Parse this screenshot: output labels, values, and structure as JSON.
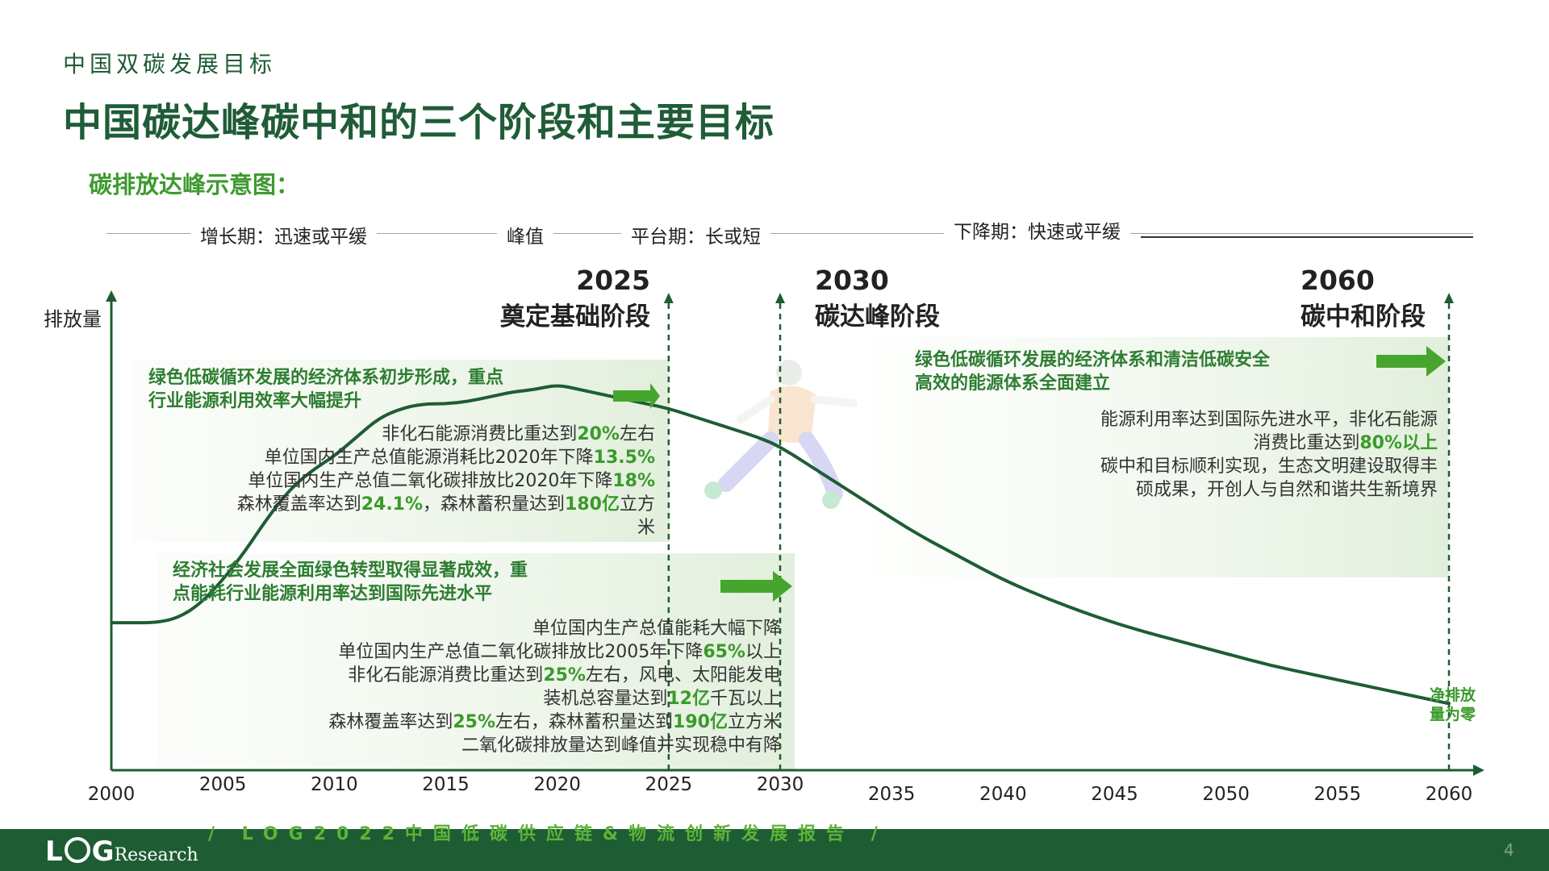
{
  "header": {
    "section": "中国双碳发展目标",
    "title": "中国碳达峰碳中和的三个阶段和主要目标",
    "subtitle": "碳排放达峰示意图："
  },
  "phases": [
    "增长期：迅速或平缓",
    "峰值",
    "平台期：长或短",
    "下降期：快速或平缓"
  ],
  "milestones": [
    {
      "year": "2025",
      "name": "奠定基础阶段"
    },
    {
      "year": "2030",
      "name": "碳达峰阶段"
    },
    {
      "year": "2060",
      "name": "碳中和阶段"
    }
  ],
  "boxes": {
    "b2025": {
      "head": [
        "绿色低碳循环发展的经济体系初步形成，重点",
        "行业能源利用效率大幅提升"
      ],
      "lines": [
        [
          "非化石能源消费比重达到",
          "20%",
          "左右"
        ],
        [
          "单位国内生产总值能源消耗比2020年下降",
          "13.5%",
          ""
        ],
        [
          "单位国内生产总值二氧化碳排放比2020年下降",
          "18%",
          ""
        ],
        [
          "森林覆盖率达到",
          "24.1%",
          "，森林蓄积量达到",
          "180亿",
          "立方"
        ],
        [
          "米"
        ]
      ]
    },
    "b2030": {
      "head": [
        "经济社会发展全面绿色转型取得显著成效，重",
        "点能耗行业能源利用率达到国际先进水平"
      ],
      "lines": [
        [
          "单位国内生产总值能耗大幅下降"
        ],
        [
          "单位国内生产总值二氧化碳排放比2005年下降",
          "65%",
          "以上"
        ],
        [
          "非化石能源消费比重达到",
          "25%",
          "左右，风电、太阳能发电"
        ],
        [
          "装机总容量达到",
          "12亿",
          "千瓦以上"
        ],
        [
          "森林覆盖率达到",
          "25%",
          "左右，森林蓄积量达到",
          "190亿",
          "立方米"
        ],
        [
          "二氧化碳排放量达到峰值并实现稳中有降"
        ]
      ]
    },
    "b2060": {
      "head": [
        "绿色低碳循环发展的经济体系和清洁低碳安全",
        "高效的能源体系全面建立"
      ],
      "lines": [
        [
          "能源利用率达到国际先进水平，非化石能源"
        ],
        [
          "消费比重达到",
          "80%以上",
          ""
        ],
        [
          "碳中和目标顺利实现，生态文明建设取得丰"
        ],
        [
          "硕成果，开创人与自然和谐共生新境界"
        ]
      ]
    }
  },
  "net_zero": [
    "净排放",
    "量为零"
  ],
  "chart_data": {
    "type": "line",
    "title": "碳排放达峰示意图：",
    "xlabel": "",
    "ylabel": "排放量",
    "x_ticks": [
      2000,
      2005,
      2010,
      2015,
      2020,
      2025,
      2030,
      2035,
      2040,
      2045,
      2050,
      2055,
      2060
    ],
    "xlim": [
      2000,
      2060
    ],
    "ylim": [
      0,
      100
    ],
    "series": [
      {
        "x": [
          2000,
          2001,
          2002,
          2003,
          2004,
          2005,
          2006,
          2007,
          2008,
          2009,
          2010,
          2011,
          2012,
          2013,
          2014,
          2015,
          2016,
          2017,
          2018,
          2019,
          2020,
          2021,
          2022,
          2023,
          2024,
          2025,
          2026,
          2027,
          2028,
          2029,
          2030,
          2032,
          2034,
          2036,
          2038,
          2040,
          2042,
          2044,
          2046,
          2048,
          2050,
          2052,
          2054,
          2056,
          2058,
          2060
        ],
        "y": [
          31,
          31,
          31,
          32,
          35,
          40,
          46,
          53,
          59,
          63,
          66,
          70,
          74,
          76,
          77,
          77,
          77.5,
          78.5,
          79.5,
          80,
          81,
          80,
          79,
          78,
          77,
          76,
          74.5,
          73,
          71.5,
          70,
          68,
          62,
          56,
          50,
          45,
          40,
          36,
          32.5,
          29.5,
          27,
          24.5,
          22,
          20,
          18,
          16,
          14
        ]
      }
    ],
    "grid": false,
    "legend": "none"
  },
  "footer": {
    "logo_a": "L",
    "logo_b": "G",
    "logo_c": "Research",
    "text": "/ LOG2022中国低碳供应链&物流创新发展报告 /",
    "page": "4"
  },
  "colors": {
    "title_green": "#1f5c37",
    "accent_green": "#3a9a2b",
    "arrow_green": "#46a52d",
    "footer_green": "#1e5d34"
  }
}
